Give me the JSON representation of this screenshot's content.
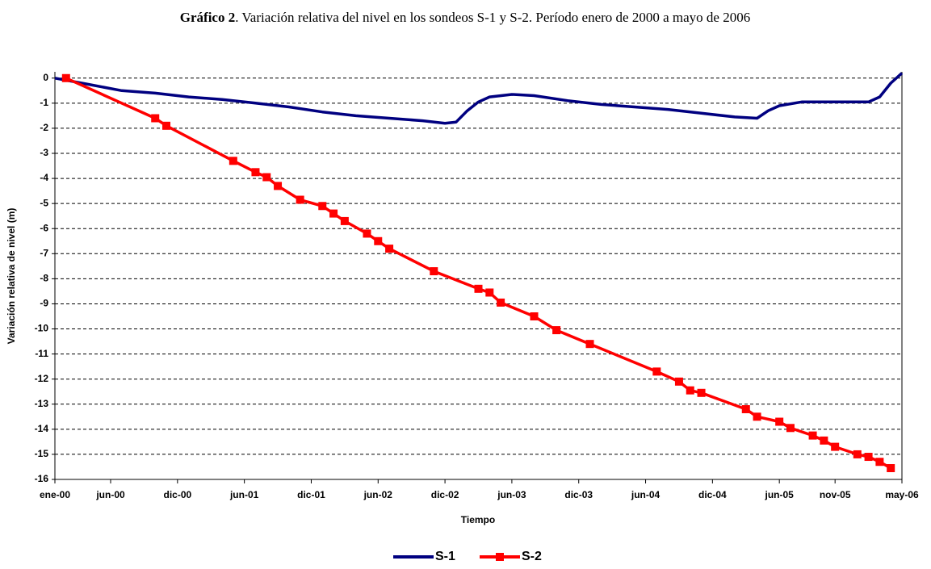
{
  "chart_data": {
    "type": "line",
    "title": {
      "label": "Gráfico 2",
      "text": ". Variación relativa del nivel en los sondeos S-1 y S-2. Período enero de 2000 a mayo de 2006"
    },
    "x_label": "Tiempo",
    "y_label": "Variación relativa de nivel (m)",
    "xlim": [
      "2000-01",
      "2006-05"
    ],
    "xticks": [
      {
        "value": "2000-01",
        "label": "ene-00"
      },
      {
        "value": "2000-06",
        "label": "jun-00"
      },
      {
        "value": "2000-12",
        "label": "dic-00"
      },
      {
        "value": "2001-06",
        "label": "jun-01"
      },
      {
        "value": "2001-12",
        "label": "dic-01"
      },
      {
        "value": "2002-06",
        "label": "jun-02"
      },
      {
        "value": "2002-12",
        "label": "dic-02"
      },
      {
        "value": "2003-06",
        "label": "jun-03"
      },
      {
        "value": "2003-12",
        "label": "dic-03"
      },
      {
        "value": "2004-06",
        "label": "jun-04"
      },
      {
        "value": "2004-12",
        "label": "dic-04"
      },
      {
        "value": "2005-06",
        "label": "jun-05"
      },
      {
        "value": "2005-11",
        "label": "nov-05"
      },
      {
        "value": "2006-05",
        "label": "may-06"
      }
    ],
    "ylim": [
      -16,
      0.25
    ],
    "yticks": [
      0,
      -1,
      -2,
      -3,
      -4,
      -5,
      -6,
      -7,
      -8,
      -9,
      -10,
      -11,
      -12,
      -13,
      -14,
      -15,
      -16
    ],
    "grid": true,
    "legend": "bottom",
    "series": [
      {
        "name": "S-1",
        "color": "#000080",
        "marker": "none",
        "x": [
          "2000-01",
          "2000-04",
          "2000-07",
          "2000-10",
          "2001-01",
          "2001-04",
          "2001-07",
          "2001-10",
          "2002-01",
          "2002-04",
          "2002-07",
          "2002-10",
          "2002-12",
          "2003-01",
          "2003-02",
          "2003-03",
          "2003-04",
          "2003-06",
          "2003-08",
          "2003-11",
          "2004-02",
          "2004-05",
          "2004-08",
          "2004-11",
          "2005-02",
          "2005-04",
          "2005-05",
          "2005-06",
          "2005-08",
          "2005-11",
          "2006-02",
          "2006-03",
          "2006-04",
          "2006-05"
        ],
        "values": [
          0,
          -0.25,
          -0.5,
          -0.6,
          -0.75,
          -0.85,
          -1.0,
          -1.15,
          -1.35,
          -1.5,
          -1.6,
          -1.7,
          -1.8,
          -1.75,
          -1.3,
          -0.95,
          -0.75,
          -0.65,
          -0.7,
          -0.9,
          -1.05,
          -1.15,
          -1.25,
          -1.4,
          -1.55,
          -1.6,
          -1.3,
          -1.1,
          -0.95,
          -0.95,
          -0.95,
          -0.75,
          -0.2,
          0.2
        ]
      },
      {
        "name": "S-2",
        "color": "#ff0000",
        "marker": "square",
        "x": [
          "2000-02",
          "2000-10",
          "2000-11",
          "2001-05",
          "2001-07",
          "2001-08",
          "2001-09",
          "2001-11",
          "2002-01",
          "2002-02",
          "2002-03",
          "2002-05",
          "2002-06",
          "2002-07",
          "2002-11",
          "2003-03",
          "2003-04",
          "2003-05",
          "2003-08",
          "2003-10",
          "2004-01",
          "2004-07",
          "2004-09",
          "2004-10",
          "2004-11",
          "2005-03",
          "2005-04",
          "2005-06",
          "2005-07",
          "2005-09",
          "2005-10",
          "2005-11",
          "2006-01",
          "2006-02",
          "2006-03",
          "2006-04"
        ],
        "values": [
          0,
          -1.6,
          -1.9,
          -3.3,
          -3.75,
          -3.95,
          -4.3,
          -4.85,
          -5.1,
          -5.4,
          -5.7,
          -6.2,
          -6.5,
          -6.8,
          -7.7,
          -8.4,
          -8.55,
          -8.95,
          -9.5,
          -10.05,
          -10.6,
          -11.7,
          -12.1,
          -12.45,
          -12.55,
          -13.2,
          -13.5,
          -13.7,
          -13.95,
          -14.25,
          -14.45,
          -14.7,
          -15.0,
          -15.1,
          -15.3,
          -15.55
        ]
      }
    ]
  }
}
